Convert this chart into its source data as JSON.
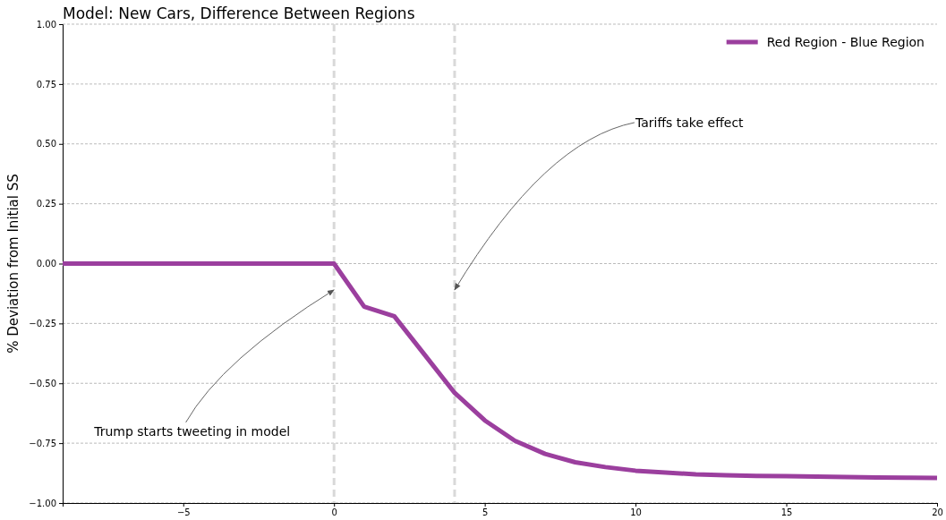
{
  "chart_data": {
    "type": "line",
    "title": "Model: New Cars, Difference Between Regions",
    "ylabel": "% Deviation from Initial SS",
    "x": [
      -9,
      -8,
      -7,
      -6,
      -5,
      -4,
      -3,
      -2,
      -1,
      0,
      1,
      2,
      3,
      4,
      5,
      6,
      7,
      8,
      9,
      10,
      11,
      12,
      13,
      14,
      15,
      16,
      17,
      18,
      19,
      20
    ],
    "series": [
      {
        "name": "Red Region - Blue Region",
        "color": "#9b3f9e",
        "values": [
          0,
          0,
          0,
          0,
          0,
          0,
          0,
          0,
          0,
          0,
          -0.18,
          -0.22,
          -0.38,
          -0.54,
          -0.655,
          -0.74,
          -0.795,
          -0.83,
          -0.85,
          -0.865,
          -0.873,
          -0.88,
          -0.884,
          -0.887,
          -0.888,
          -0.89,
          -0.892,
          -0.893,
          -0.894,
          -0.895
        ]
      }
    ],
    "xlim": [
      -9,
      20
    ],
    "ylim": [
      -1,
      1
    ],
    "xticks": [
      {
        "value": -5,
        "label": "−5"
      },
      0,
      5,
      10,
      15,
      20
    ],
    "yticks": [
      {
        "value": -1,
        "label": "−1.00"
      },
      {
        "value": -0.75,
        "label": "−0.75"
      },
      {
        "value": -0.5,
        "label": "−0.50"
      },
      {
        "value": -0.25,
        "label": "−0.25"
      },
      {
        "value": 0,
        "label": "0.00"
      },
      {
        "value": 0.25,
        "label": "0.25"
      },
      {
        "value": 0.5,
        "label": "0.50"
      },
      {
        "value": 0.75,
        "label": "0.75"
      },
      {
        "value": 1,
        "label": "1.00"
      }
    ],
    "grid": "y",
    "legend": "top right",
    "marker": "none",
    "line_style": "solid",
    "ref_lines": [
      {
        "axis": "x",
        "value": 0,
        "color": "#d9d9d9",
        "line_style": "dashed"
      },
      {
        "axis": "x",
        "value": 4,
        "color": "#d9d9d9",
        "line_style": "dashed"
      }
    ],
    "annotations": [
      {
        "text": "Trump starts tweeting in model",
        "x": 0,
        "y": -0.11
      },
      {
        "text": "Tariffs take effect",
        "x": 4,
        "y": -0.11
      }
    ]
  }
}
